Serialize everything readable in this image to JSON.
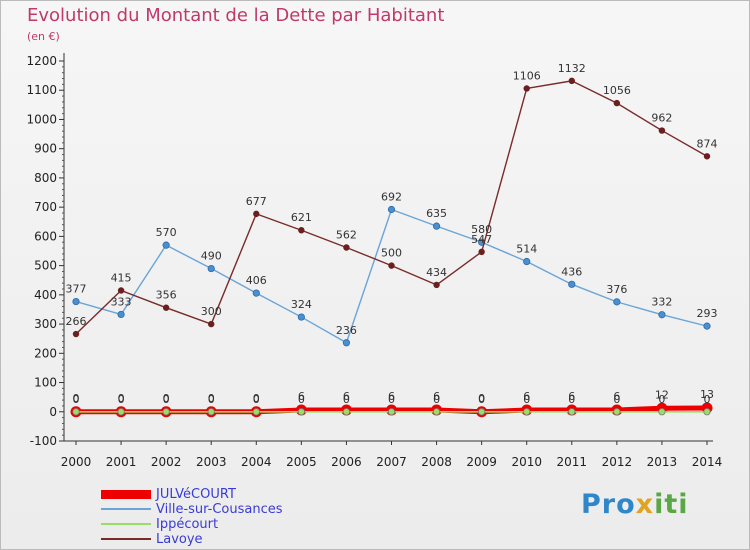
{
  "title": "Evolution du Montant de la Dette par Habitant",
  "subtitle": "(en €)",
  "logo": {
    "part1": "Pro",
    "part2": "x",
    "part3": "iti"
  },
  "chart_data": {
    "type": "line",
    "title": "Evolution du Montant de la Dette par Habitant",
    "ylabel": "(en €)",
    "xlabel": "",
    "x": [
      "2000",
      "2001",
      "2002",
      "2003",
      "2004",
      "2005",
      "2006",
      "2007",
      "2008",
      "2009",
      "2010",
      "2011",
      "2012",
      "2013",
      "2014"
    ],
    "yticks": [
      -100,
      0,
      100,
      200,
      300,
      400,
      500,
      600,
      700,
      800,
      900,
      1000,
      1100,
      1200
    ],
    "ylim": [
      -100,
      1200
    ],
    "grid": false,
    "legend_position": "bottom-left",
    "series": [
      {
        "name": "JULVéCOURT",
        "color": "#ee0000",
        "values": [
          0,
          0,
          0,
          0,
          0,
          6,
          6,
          6,
          6,
          0,
          6,
          6,
          6,
          12,
          13
        ],
        "labels": [
          "0",
          "0",
          "0",
          "0",
          "0",
          "6",
          "6",
          "6",
          "6",
          "0",
          "6",
          "6",
          "6",
          "12",
          "13"
        ]
      },
      {
        "name": "Ville-sur-Cousances",
        "color": "#6aa4d8",
        "values": [
          377,
          333,
          570,
          490,
          406,
          324,
          236,
          692,
          635,
          580,
          514,
          436,
          376,
          332,
          293
        ],
        "labels": [
          "377",
          "333",
          "570",
          "490",
          "406",
          "324",
          "236",
          "692",
          "635",
          "580",
          "514",
          "436",
          "376",
          "332",
          "293"
        ]
      },
      {
        "name": "Ippécourt",
        "color": "#99dd66",
        "values": [
          0,
          0,
          0,
          0,
          0,
          0,
          0,
          0,
          0,
          0,
          0,
          0,
          0,
          0,
          0
        ],
        "labels": [
          "0",
          "0",
          "0",
          "0",
          "0",
          "0",
          "0",
          "0",
          "0",
          "0",
          "0",
          "0",
          "0",
          "0",
          "0"
        ]
      },
      {
        "name": "Lavoye",
        "color": "#7a2a2a",
        "values": [
          266,
          415,
          356,
          300,
          677,
          621,
          562,
          500,
          434,
          547,
          1106,
          1132,
          1056,
          962,
          874
        ],
        "labels": [
          "266",
          "415",
          "356",
          "300",
          "677",
          "621",
          "562",
          "500",
          "434",
          "547",
          "1106",
          "1132",
          "1056",
          "962",
          "874"
        ]
      }
    ]
  }
}
